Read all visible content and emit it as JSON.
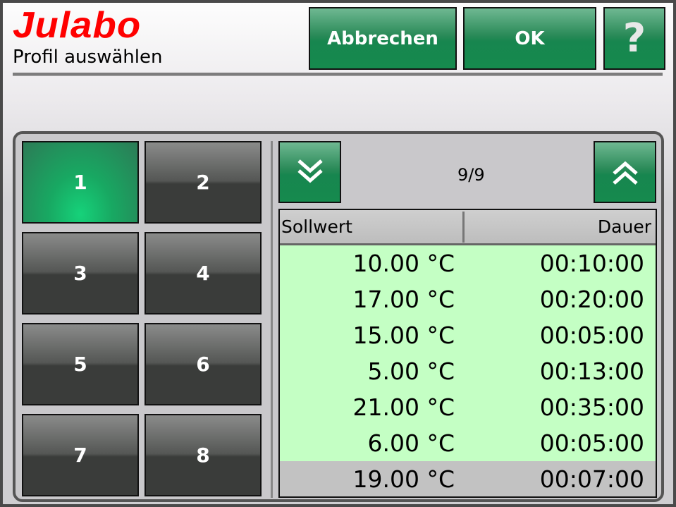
{
  "header": {
    "logo": "Julabo",
    "subtitle": "Profil auswählen",
    "cancel_label": "Abbrechen",
    "ok_label": "OK",
    "help_label": "?"
  },
  "profiles": [
    {
      "label": "1",
      "selected": true
    },
    {
      "label": "2"
    },
    {
      "label": "3"
    },
    {
      "label": "4"
    },
    {
      "label": "5"
    },
    {
      "label": "6"
    },
    {
      "label": "7"
    },
    {
      "label": "8"
    }
  ],
  "pager": {
    "text": "9/9",
    "down_icon": "double-chevron-down",
    "up_icon": "double-chevron-up"
  },
  "table": {
    "columns": [
      "Sollwert",
      "Dauer"
    ],
    "rows": [
      [
        "10.00 °C",
        "00:10:00"
      ],
      [
        "17.00 °C",
        "00:20:00"
      ],
      [
        "15.00 °C",
        "00:05:00"
      ],
      [
        "5.00 °C",
        "00:13:00"
      ],
      [
        "21.00 °C",
        "00:35:00"
      ],
      [
        "6.00 °C",
        "00:05:00"
      ],
      [
        "19.00 °C",
        "00:07:00"
      ]
    ],
    "selected_row": 6
  },
  "colors": {
    "accent": "#17864f",
    "rows_bg": "#c4ffc4",
    "logo": "#ff0000"
  }
}
